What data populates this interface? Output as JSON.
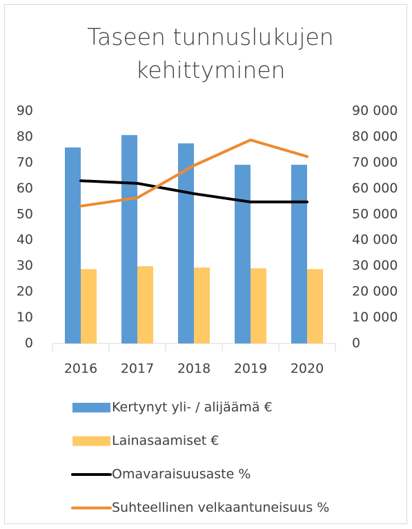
{
  "chart_data": {
    "type": "bar_line_combo",
    "title": "Taseen tunnuslukujen kehittyminen",
    "categories": [
      "2016",
      "2017",
      "2018",
      "2019",
      "2020"
    ],
    "series": [
      {
        "name": "Kertynyt yli- / alijäämä €",
        "type": "bar",
        "axis": "y2",
        "color": "#5b9bd5",
        "values": [
          75900,
          80700,
          77500,
          69200,
          69200
        ]
      },
      {
        "name": "Lainasaamiset €",
        "type": "bar",
        "axis": "y2",
        "color": "#ffc966",
        "values": [
          28800,
          29900,
          29400,
          29100,
          28800
        ]
      },
      {
        "name": "Omavaraisuusaste %",
        "type": "line",
        "axis": "y",
        "color": "#000000",
        "values": [
          63.0,
          62.0,
          58.0,
          54.8,
          54.8
        ]
      },
      {
        "name": "Suhteellinen velkaantuneisuus %",
        "type": "line",
        "axis": "y",
        "color": "#ed8b2f",
        "values": [
          53.2,
          56.4,
          68.9,
          78.8,
          72.4
        ]
      }
    ],
    "ylim": [
      0,
      90
    ],
    "yticks": [
      0,
      10,
      20,
      30,
      40,
      50,
      60,
      70,
      80,
      90
    ],
    "y2lim": [
      0,
      90000
    ],
    "y2ticks": [
      {
        "value": 0,
        "label": "0"
      },
      {
        "value": 10000,
        "label": "10 000"
      },
      {
        "value": 20000,
        "label": "20 000"
      },
      {
        "value": 30000,
        "label": "30 000"
      },
      {
        "value": 40000,
        "label": "40 000"
      },
      {
        "value": 50000,
        "label": "50 000"
      },
      {
        "value": 60000,
        "label": "60 000"
      },
      {
        "value": 70000,
        "label": "70 000"
      },
      {
        "value": 80000,
        "label": "80 000"
      },
      {
        "value": 90000,
        "label": "90 000"
      }
    ],
    "legend": "bottom",
    "grid": false
  }
}
